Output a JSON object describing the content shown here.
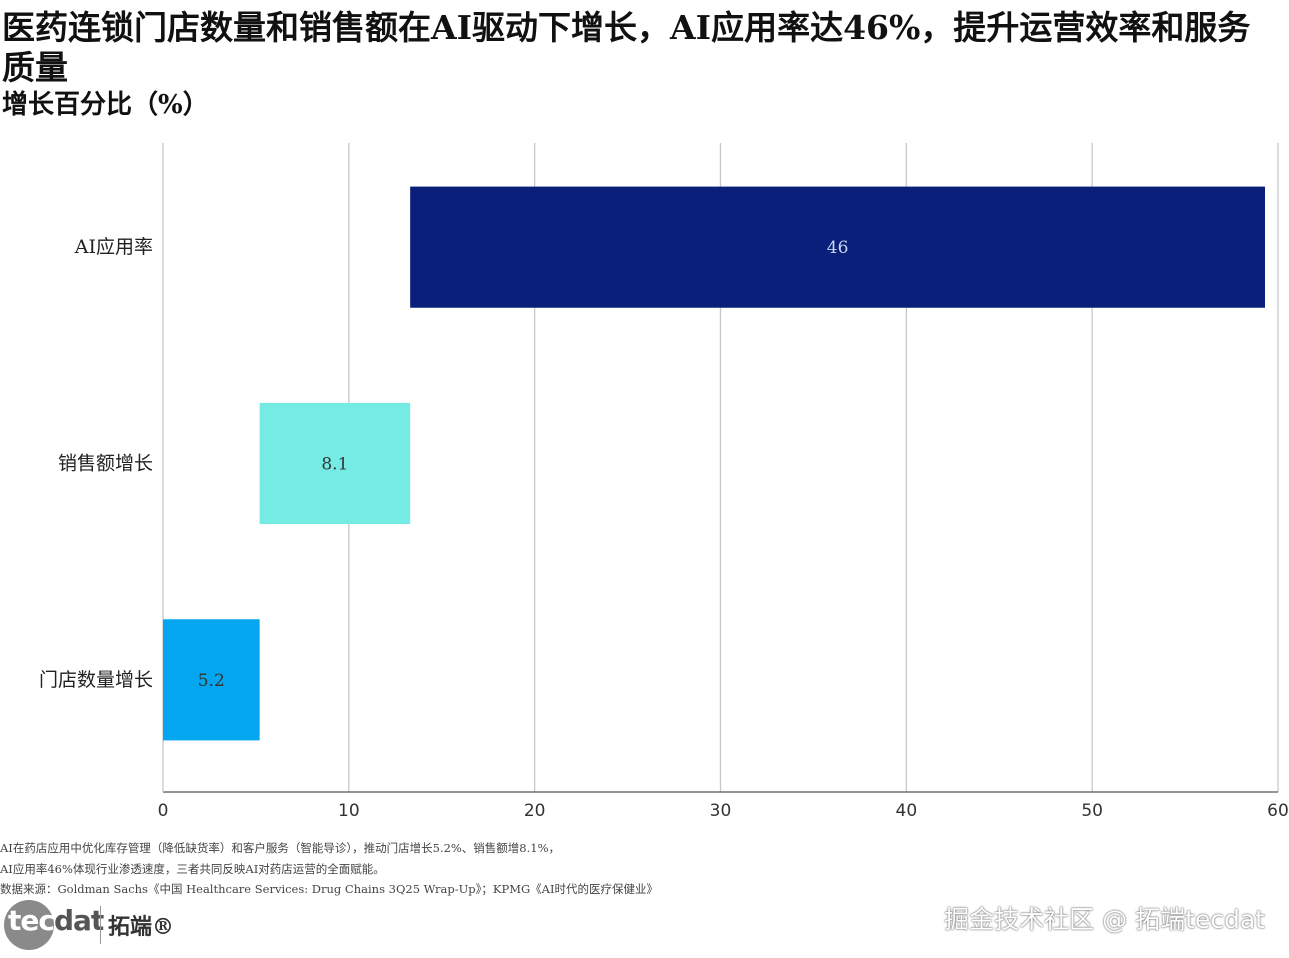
{
  "header": {
    "title": "医药连锁门店数量和销售额在AI驱动下增长，AI应用率达46%，提升运营效率和服务质量",
    "subtitle": "增长百分比（%）"
  },
  "chart_data": {
    "type": "bar",
    "orientation": "horizontal",
    "categories": [
      "AI应用率",
      "销售额增长",
      "门店数量增长"
    ],
    "series": [
      {
        "values": [
          46,
          8.1,
          5.2
        ],
        "base": [
          13.3,
          5.2,
          0
        ],
        "labels": [
          "46",
          "8.1",
          "5.2"
        ],
        "colors": [
          "#0a1f7a",
          "#74ece4",
          "#04a6ef"
        ]
      }
    ],
    "xlim": [
      0,
      60
    ],
    "xticks": [
      0,
      10,
      20,
      30,
      40,
      50,
      60
    ],
    "grid": true
  },
  "footer": {
    "note_line1": "AI在药店应用中优化库存管理（降低缺货率）和客户服务（智能导诊），推动门店增长5.2%、销售额增8.1%，",
    "note_line2": "AI应用率46%体现行业渗透速度，三者共同反映AI对药店运营的全面赋能。",
    "source": "数据来源：Goldman Sachs《中国 Healthcare Services: Drug Chains 3Q25 Wrap-Up》；KPMG《AI时代的医疗保健业》",
    "logo_tec": "tec",
    "logo_dat": "dat",
    "logo_cn": "拓端®",
    "watermark": "掘金技术社区 @ 拓端tecdat"
  }
}
